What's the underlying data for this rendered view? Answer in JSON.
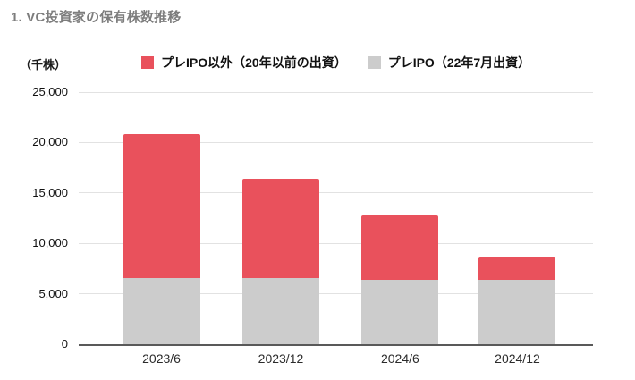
{
  "header": {
    "title": "1. VC投資家の保有株数推移"
  },
  "y_axis": {
    "unit_label": "（千株）"
  },
  "legend": {
    "items": [
      {
        "label": "プレIPO以外（20年以前の出資）",
        "color": "#E9515C"
      },
      {
        "label": "プレIPO（22年7月出資）",
        "color": "#CCCCCC"
      }
    ]
  },
  "chart_data": {
    "type": "bar",
    "stacked": true,
    "title": "1. VC投資家の保有株数推移",
    "unit": "千株",
    "categories": [
      "2023/6",
      "2023/12",
      "2024/6",
      "2024/12"
    ],
    "series": [
      {
        "name": "プレIPO（22年7月出資）",
        "color": "#CCCCCC",
        "values": [
          6600,
          6600,
          6400,
          6400
        ]
      },
      {
        "name": "プレIPO以外（20年以前の出資）",
        "color": "#E9515C",
        "values": [
          14200,
          9800,
          6400,
          2300
        ]
      }
    ],
    "totals": [
      20800,
      16400,
      12800,
      8700
    ],
    "ylim": [
      0,
      25000
    ],
    "ytick_step": 5000,
    "ytick_labels": [
      "0",
      "5,000",
      "10,000",
      "15,000",
      "20,000",
      "25,000"
    ],
    "grid": true,
    "legend_position": "top",
    "colors": {
      "red": "#E9515C",
      "gray": "#CCCCCC",
      "gridline": "#E2E2E2",
      "axis": "#595959",
      "title": "#7D7D7D"
    }
  }
}
